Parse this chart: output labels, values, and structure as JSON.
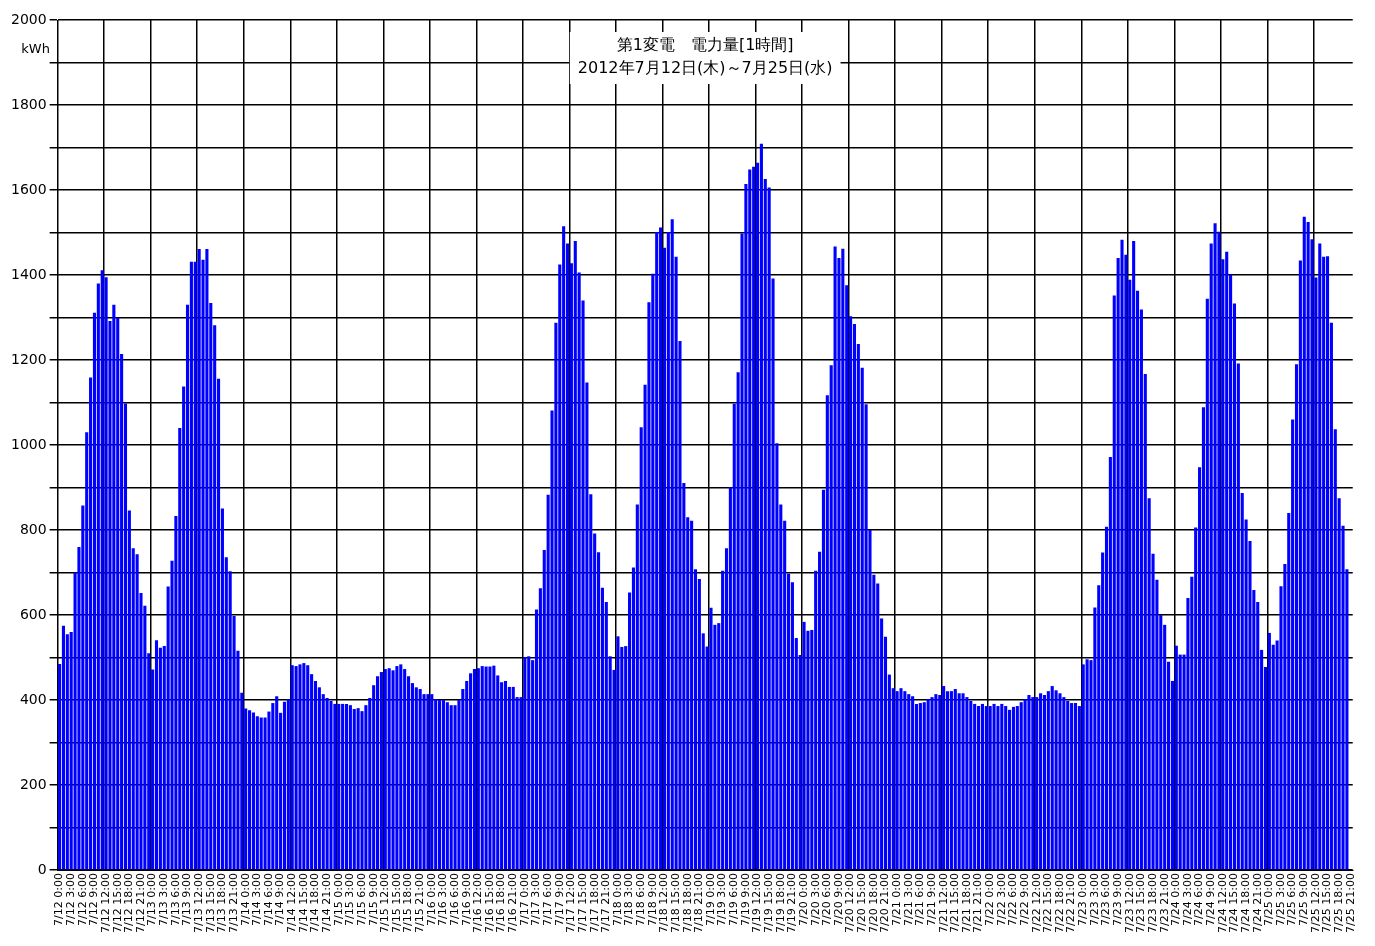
{
  "chart_data": {
    "type": "bar",
    "title": "第1変電　電力量[1時間]",
    "subtitle": "2012年7月12日(木)～7月25日(水)",
    "ylabel": "kWh",
    "categories": [
      "7/12 0:00",
      null,
      null,
      "7/12 3:00",
      null,
      null,
      "7/12 6:00",
      null,
      null,
      "7/12 9:00",
      null,
      null,
      "7/12 12:00",
      null,
      null,
      "7/12 15:00",
      null,
      null,
      "7/12 18:00",
      null,
      null,
      "7/12 21:00",
      null,
      null,
      "7/13 0:00",
      null,
      null,
      "7/13 3:00",
      null,
      null,
      "7/13 6:00",
      null,
      null,
      "7/13 9:00",
      null,
      null,
      "7/13 12:00",
      null,
      null,
      "7/13 15:00",
      null,
      null,
      "7/13 18:00",
      null,
      null,
      "7/13 21:00",
      null,
      null,
      "7/14 0:00",
      null,
      null,
      "7/14 3:00",
      null,
      null,
      "7/14 6:00",
      null,
      null,
      "7/14 9:00",
      null,
      null,
      "7/14 12:00",
      null,
      null,
      "7/14 15:00",
      null,
      null,
      "7/14 18:00",
      null,
      null,
      "7/14 21:00",
      null,
      null,
      "7/15 0:00",
      null,
      null,
      "7/15 3:00",
      null,
      null,
      "7/15 6:00",
      null,
      null,
      "7/15 9:00",
      null,
      null,
      "7/15 12:00",
      null,
      null,
      "7/15 15:00",
      null,
      null,
      "7/15 18:00",
      null,
      null,
      "7/15 21:00",
      null,
      null,
      "7/16 0:00",
      null,
      null,
      "7/16 3:00",
      null,
      null,
      "7/16 6:00",
      null,
      null,
      "7/16 9:00",
      null,
      null,
      "7/16 12:00",
      null,
      null,
      "7/16 15:00",
      null,
      null,
      "7/16 18:00",
      null,
      null,
      "7/16 21:00",
      null,
      null,
      "7/17 0:00",
      null,
      null,
      "7/17 3:00",
      null,
      null,
      "7/17 6:00",
      null,
      null,
      "7/17 9:00",
      null,
      null,
      "7/17 12:00",
      null,
      null,
      "7/17 15:00",
      null,
      null,
      "7/17 18:00",
      null,
      null,
      "7/17 21:00",
      null,
      null,
      "7/18 0:00",
      null,
      null,
      "7/18 3:00",
      null,
      null,
      "7/18 6:00",
      null,
      null,
      "7/18 9:00",
      null,
      null,
      "7/18 12:00",
      null,
      null,
      "7/18 15:00",
      null,
      null,
      "7/18 18:00",
      null,
      null,
      "7/18 21:00",
      null,
      null,
      "7/19 0:00",
      null,
      null,
      "7/19 3:00",
      null,
      null,
      "7/19 6:00",
      null,
      null,
      "7/19 9:00",
      null,
      null,
      "7/19 12:00",
      null,
      null,
      "7/19 15:00",
      null,
      null,
      "7/19 18:00",
      null,
      null,
      "7/19 21:00",
      null,
      null,
      "7/20 0:00",
      null,
      null,
      "7/20 3:00",
      null,
      null,
      "7/20 6:00",
      null,
      null,
      "7/20 9:00",
      null,
      null,
      "7/20 12:00",
      null,
      null,
      "7/20 15:00",
      null,
      null,
      "7/20 18:00",
      null,
      null,
      "7/20 21:00",
      null,
      null,
      "7/21 0:00",
      null,
      null,
      "7/21 3:00",
      null,
      null,
      "7/21 6:00",
      null,
      null,
      "7/21 9:00",
      null,
      null,
      "7/21 12:00",
      null,
      null,
      "7/21 15:00",
      null,
      null,
      "7/21 18:00",
      null,
      null,
      "7/21 21:00",
      null,
      null,
      "7/22 0:00",
      null,
      null,
      "7/22 3:00",
      null,
      null,
      "7/22 6:00",
      null,
      null,
      "7/22 9:00",
      null,
      null,
      "7/22 12:00",
      null,
      null,
      "7/22 15:00",
      null,
      null,
      "7/22 18:00",
      null,
      null,
      "7/22 21:00",
      null,
      null,
      "7/23 0:00",
      null,
      null,
      "7/23 3:00",
      null,
      null,
      "7/23 6:00",
      null,
      null,
      "7/23 9:00",
      null,
      null,
      "7/23 12:00",
      null,
      null,
      "7/23 15:00",
      null,
      null,
      "7/23 18:00",
      null,
      null,
      "7/23 21:00",
      null,
      null,
      "7/24 0:00",
      null,
      null,
      "7/24 3:00",
      null,
      null,
      "7/24 6:00",
      null,
      null,
      "7/24 9:00",
      null,
      null,
      "7/24 12:00",
      null,
      null,
      "7/24 15:00",
      null,
      null,
      "7/24 18:00",
      null,
      null,
      "7/24 21:00",
      null,
      null,
      "7/25 0:00",
      null,
      null,
      "7/25 3:00",
      null,
      null,
      "7/25 6:00",
      null,
      null,
      "7/25 9:00",
      null,
      null,
      "7/25 12:00",
      null,
      null,
      "7/25 15:00",
      null,
      null,
      "7/25 18:00",
      null,
      null,
      "7/25 21:00"
    ],
    "values": [
      485,
      575,
      555,
      560,
      700,
      760,
      858,
      1030,
      1159,
      1311,
      1380,
      1411,
      1395,
      1292,
      1330,
      1299,
      1214,
      1098,
      846,
      757,
      743,
      652,
      622,
      510,
      472,
      541,
      523,
      527,
      667,
      728,
      833,
      1040,
      1138,
      1330,
      1431,
      1431,
      1461,
      1436,
      1461,
      1334,
      1282,
      1156,
      851,
      736,
      703,
      598,
      516,
      417,
      380,
      376,
      371,
      362,
      359,
      359,
      373,
      393,
      409,
      370,
      396,
      402,
      482,
      480,
      484,
      487,
      482,
      461,
      445,
      430,
      414,
      405,
      398,
      391,
      391,
      391,
      391,
      388,
      379,
      381,
      374,
      388,
      405,
      435,
      456,
      466,
      473,
      475,
      470,
      480,
      484,
      473,
      456,
      440,
      430,
      426,
      414,
      414,
      414,
      402,
      400,
      400,
      395,
      388,
      388,
      400,
      426,
      445,
      463,
      473,
      475,
      480,
      479,
      479,
      481,
      458,
      442,
      445,
      431,
      431,
      407,
      407,
      501,
      503,
      494,
      613,
      663,
      753,
      883,
      1081,
      1288,
      1425,
      1515,
      1474,
      1428,
      1480,
      1406,
      1340,
      1147,
      884,
      792,
      748,
      664,
      631,
      503,
      471,
      550,
      525,
      527,
      653,
      712,
      860,
      1042,
      1142,
      1336,
      1403,
      1501,
      1512,
      1464,
      1501,
      1531,
      1443,
      1245,
      911,
      830,
      822,
      708,
      685,
      557,
      526,
      617,
      577,
      581,
      704,
      757,
      900,
      1097,
      1171,
      1498,
      1614,
      1648,
      1655,
      1664,
      1709,
      1626,
      1606,
      1392,
      1004,
      860,
      822,
      697,
      677,
      546,
      506,
      584,
      563,
      565,
      704,
      749,
      895,
      1117,
      1188,
      1467,
      1440,
      1462,
      1376,
      1303,
      1285,
      1238,
      1182,
      1096,
      800,
      695,
      674,
      592,
      549,
      460,
      428,
      421,
      428,
      421,
      414,
      409,
      391,
      393,
      395,
      402,
      407,
      414,
      412,
      433,
      421,
      421,
      426,
      416,
      416,
      407,
      398,
      391,
      386,
      391,
      386,
      386,
      391,
      386,
      391,
      386,
      377,
      384,
      386,
      395,
      402,
      412,
      407,
      407,
      416,
      412,
      421,
      433,
      423,
      416,
      407,
      398,
      393,
      393,
      386,
      484,
      496,
      494,
      618,
      670,
      747,
      808,
      972,
      1352,
      1440,
      1483,
      1448,
      1389,
      1480,
      1363,
      1319,
      1167,
      875,
      744,
      683,
      600,
      577,
      490,
      445,
      528,
      507,
      507,
      640,
      690,
      806,
      948,
      1089,
      1344,
      1474,
      1522,
      1502,
      1437,
      1455,
      1401,
      1333,
      1192,
      887,
      825,
      774,
      659,
      631,
      518,
      478,
      558,
      530,
      540,
      668,
      720,
      840,
      1060,
      1190,
      1434,
      1537,
      1525,
      1484,
      1394,
      1474,
      1443,
      1444,
      1288,
      1037,
      875,
      810,
      708,
      null
    ],
    "color": "#0000ff",
    "ylim": [
      0,
      2000
    ],
    "yticks": [
      0,
      {
        "value": 100,
        "label": null
      },
      200,
      {
        "value": 300,
        "label": null
      },
      400,
      {
        "value": 500,
        "label": null
      },
      600,
      {
        "value": 700,
        "label": null
      },
      800,
      {
        "value": 900,
        "label": null
      },
      1000,
      {
        "value": 1100,
        "label": null
      },
      1200,
      {
        "value": 1300,
        "label": null
      },
      1400,
      {
        "value": 1500,
        "label": null
      },
      1600,
      {
        "value": 1700,
        "label": null
      },
      1800,
      {
        "value": 1900,
        "label": null
      },
      2000
    ],
    "grid": true
  }
}
